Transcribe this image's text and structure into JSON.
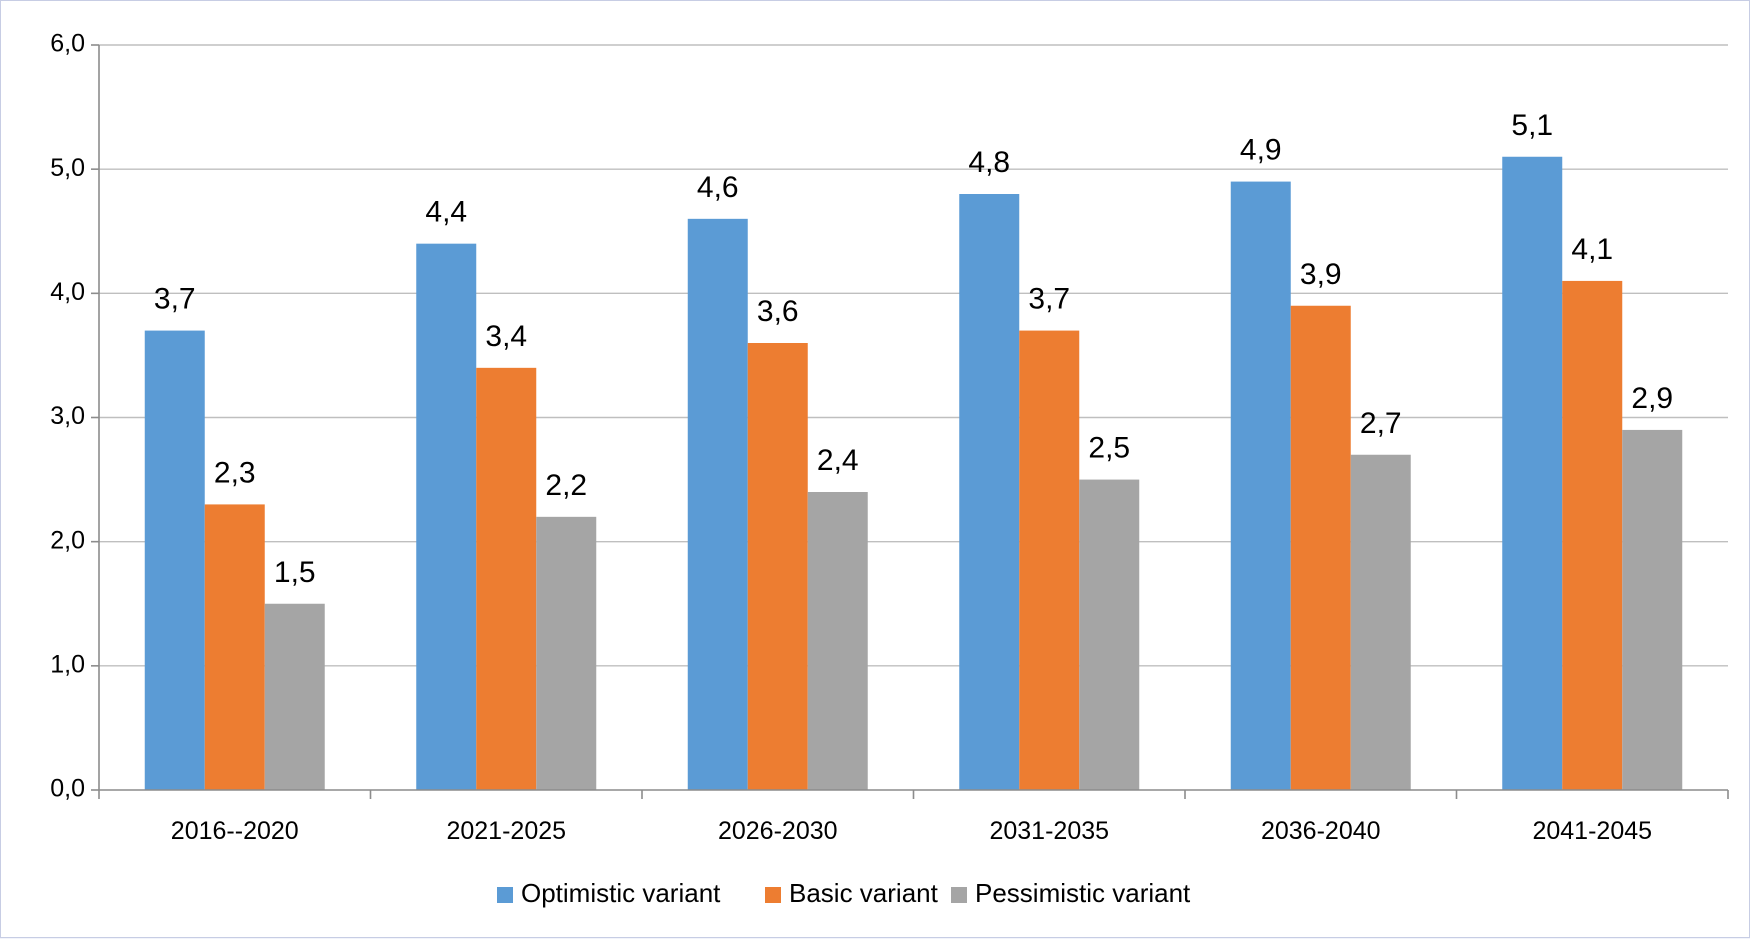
{
  "chart_data": {
    "type": "bar",
    "title": "",
    "xlabel": "",
    "ylabel": "",
    "ylim": [
      0,
      6
    ],
    "yticks": [
      "0,0",
      "1,0",
      "2,0",
      "3,0",
      "4,0",
      "5,0",
      "6,0"
    ],
    "grid": true,
    "legend_position": "bottom",
    "categories": [
      "2016--2020",
      "2021-2025",
      "2026-2030",
      "2031-2035",
      "2036-2040",
      "2041-2045"
    ],
    "series": [
      {
        "name": "Optimistic variant",
        "color": "#5b9bd5",
        "values": [
          3.7,
          4.4,
          4.6,
          4.8,
          4.9,
          5.1
        ],
        "labels": [
          "3,7",
          "4,4",
          "4,6",
          "4,8",
          "4,9",
          "5,1"
        ]
      },
      {
        "name": "Basic variant",
        "color": "#ed7d31",
        "values": [
          2.3,
          3.4,
          3.6,
          3.7,
          3.9,
          4.1
        ],
        "labels": [
          "2,3",
          "3,4",
          "3,6",
          "3,7",
          "3,9",
          "4,1"
        ]
      },
      {
        "name": "Pessimistic variant",
        "color": "#a5a5a5",
        "values": [
          1.5,
          2.2,
          2.4,
          2.5,
          2.7,
          2.9
        ],
        "labels": [
          "1,5",
          "2,2",
          "2,4",
          "2,5",
          "2,7",
          "2,9"
        ]
      }
    ]
  }
}
